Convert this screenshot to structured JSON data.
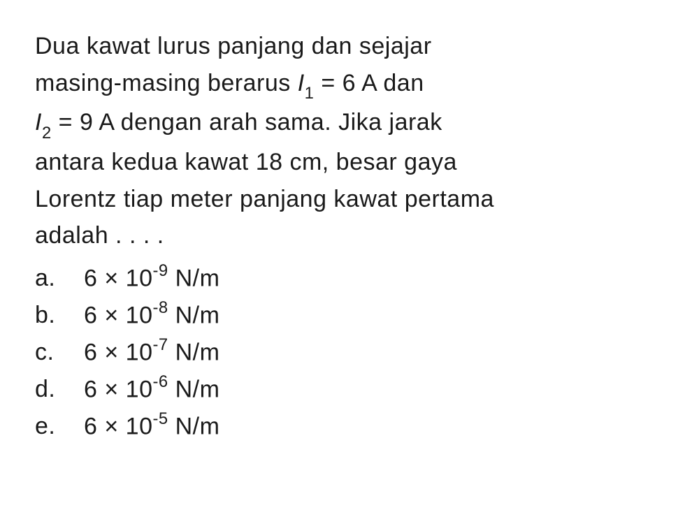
{
  "question": {
    "line1": "Dua kawat lurus panjang dan sejajar",
    "line2_pre": "masing-masing berarus ",
    "i1_sym": "I",
    "i1_sub": "1",
    "i1_eq": " = 6 A dan",
    "line3_pre": "",
    "i2_sym": "I",
    "i2_sub": "2",
    "i2_eq": " = 9 A dengan arah sama. Jika jarak",
    "line4": "antara kedua kawat 18 cm, besar gaya",
    "line5": "Lorentz tiap meter panjang kawat pertama",
    "line6": "adalah . . . ."
  },
  "options": [
    {
      "letter": "a.",
      "coef": "6 × 10",
      "exp": "-9",
      "unit": " N/m"
    },
    {
      "letter": "b.",
      "coef": "6 × 10",
      "exp": "-8",
      "unit": " N/m"
    },
    {
      "letter": "c.",
      "coef": "6 × 10",
      "exp": "-7",
      "unit": " N/m"
    },
    {
      "letter": "d.",
      "coef": "6 × 10",
      "exp": "-6",
      "unit": " N/m"
    },
    {
      "letter": "e.",
      "coef": "6 × 10",
      "exp": "-5",
      "unit": " N/m"
    }
  ],
  "style": {
    "text_color": "#1a1a1a",
    "background_color": "#ffffff",
    "font_size_pt": 26,
    "line_height": 1.55
  }
}
